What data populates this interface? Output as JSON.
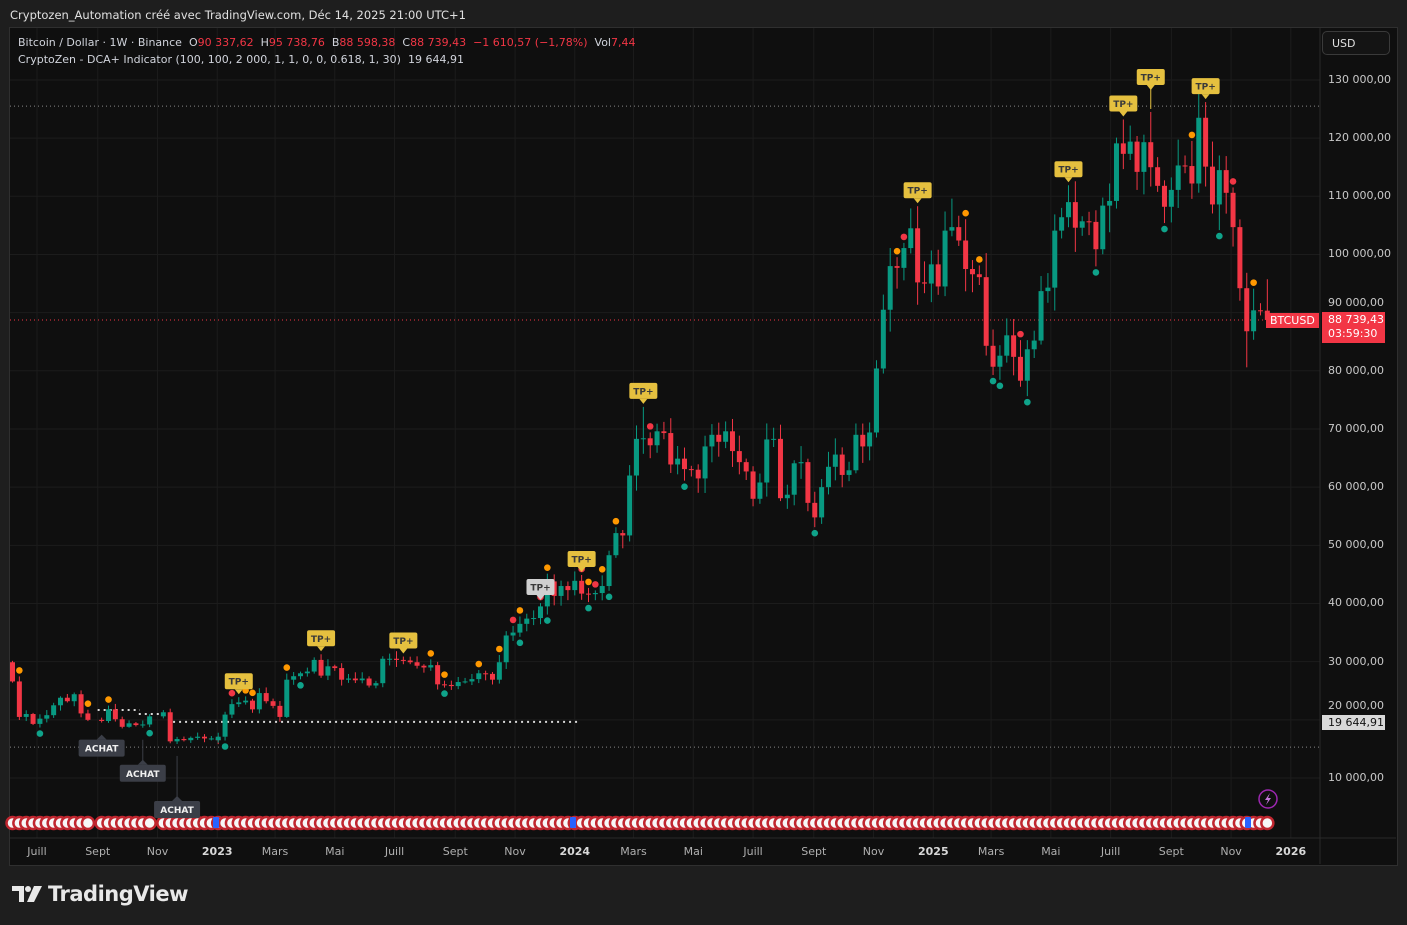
{
  "caption": "Cryptozen_Automation créé avec TradingView.com, Déc 14, 2025 21:00 UTC+1",
  "legend": {
    "symbol": "Bitcoin / Dollar · 1W · Binance",
    "o_label": "O",
    "o": "90 337,62",
    "h_label": "H",
    "h": "95 738,76",
    "l_label": "B",
    "l": "88 598,38",
    "c_label": "C",
    "c": "88 739,43",
    "change": "−1 610,57 (−1,78%)",
    "vol_label": "Vol",
    "vol": "7,44",
    "indicator": "CryptoZen - DCA+ Indicator (100, 100, 2 000, 1, 1, 0, 0, 0.618, 1, 30)",
    "indicator_value": "19 644,91"
  },
  "currency_button": "USD",
  "symbol_tag": "BTCUSD",
  "price_tag": {
    "price": "88 739,43",
    "countdown": "03:59:30"
  },
  "indicator_tag": "19 644,91",
  "brand": "TradingView",
  "colors": {
    "up": "#089981",
    "down": "#f23645",
    "tp": "#e5c03f",
    "achat": "#3b3e47",
    "orange": "#ff9800",
    "red": "#f23645",
    "teal": "#0fa38a"
  },
  "chart_data": {
    "type": "candlestick",
    "interval": "1W",
    "units": "USD (thousands in weekly_close)",
    "first_open": 29.9,
    "weekly_close": {
      "2022-06": [
        26.6,
        20.5,
        21.0,
        19.3
      ],
      "2022-07": [
        20.2,
        20.8,
        22.5,
        23.8
      ],
      "2022-08": [
        23.2,
        24.4,
        21.1,
        20.0
      ],
      "2022-09": [
        19.8,
        21.8,
        20.1,
        18.8,
        19.3
      ],
      "2022-10": [
        19.4,
        19.1,
        19.2,
        20.6
      ],
      "2022-11": [
        21.3,
        16.3,
        16.7,
        16.5
      ],
      "2022-12": [
        16.9,
        17.1,
        16.8,
        16.8,
        16.5
      ],
      "2023-01": [
        17.1,
        20.9,
        22.7,
        23.0,
        23.3
      ],
      "2023-02": [
        21.8,
        24.6,
        23.2,
        22.4
      ],
      "2023-03": [
        20.5,
        26.9,
        27.5,
        28.0
      ],
      "2023-04": [
        28.3,
        30.3,
        27.6,
        29.2
      ],
      "2023-05": [
        28.9,
        26.9,
        27.1,
        26.8,
        27.1
      ],
      "2023-06": [
        25.9,
        26.3,
        30.5,
        30.5
      ],
      "2023-07": [
        30.3,
        30.2,
        29.9,
        29.3,
        29.0
      ],
      "2023-08": [
        29.4,
        26.1,
        26.0,
        25.8
      ],
      "2023-09": [
        26.5,
        26.6,
        27.0,
        28.0
      ],
      "2023-10": [
        27.9,
        26.9,
        29.9,
        34.5,
        35.0
      ],
      "2023-11": [
        36.5,
        37.4,
        37.5,
        39.5
      ],
      "2023-12": [
        43.8,
        41.3,
        43.0,
        42.3
      ],
      "2024-01": [
        43.9,
        41.7,
        41.6,
        41.8,
        43.0
      ],
      "2024-02": [
        48.3,
        52.1,
        51.7,
        62.0
      ],
      "2024-03": [
        68.3,
        68.4,
        67.2,
        69.6
      ],
      "2024-04": [
        69.3,
        63.9,
        64.9,
        63.1,
        63.0
      ],
      "2024-05": [
        61.5,
        67.0,
        69.0,
        67.8
      ],
      "2024-06": [
        69.6,
        66.2,
        64.3,
        62.7
      ],
      "2024-07": [
        58.0,
        60.8,
        68.2,
        68.3,
        58.1
      ],
      "2024-08": [
        58.7,
        64.1,
        64.3,
        57.3
      ],
      "2024-09": [
        54.8,
        60.0,
        63.5,
        65.6,
        62.1
      ],
      "2024-10": [
        62.9,
        69.0,
        67.0,
        69.4
      ],
      "2024-11": [
        80.4,
        90.5,
        98.0,
        97.7
      ],
      "2024-12": [
        101.1,
        104.5,
        95.2,
        95.0,
        98.3
      ],
      "2025-01": [
        94.5,
        104.1,
        104.7,
        102.4
      ],
      "2025-02": [
        97.5,
        96.6,
        96.1,
        84.3
      ],
      "2025-03": [
        80.7,
        82.6,
        86.1,
        82.4,
        78.3
      ],
      "2025-04": [
        83.7,
        85.2,
        93.7,
        94.3
      ],
      "2025-05": [
        104.1,
        106.4,
        109.0,
        104.6
      ],
      "2025-06": [
        105.7,
        105.6,
        100.9,
        108.4,
        109.2
      ],
      "2025-07": [
        119.1,
        117.3,
        119.4,
        114.2
      ],
      "2025-08": [
        119.3,
        115.0,
        111.8,
        108.2
      ],
      "2025-09": [
        111.1,
        115.3,
        115.2,
        112.2,
        123.5
      ],
      "2025-10": [
        115.1,
        108.6,
        114.5,
        110.6
      ],
      "2025-11": [
        104.7,
        94.2,
        86.8,
        90.4
      ],
      "2025-12": [
        90.34,
        88.74
      ]
    },
    "wick_extremes": {
      "2024-03-11": {
        "high": 73.8
      },
      "2024-12-16": {
        "high": 108.3
      },
      "2025-01-20": {
        "high": 109.6
      },
      "2025-05-19": {
        "high": 111.9
      },
      "2025-07-14": {
        "high": 123.2
      },
      "2025-08-11": {
        "high": 124.5
      },
      "2025-10-06": {
        "high": 126.2
      },
      "2025-11-17": {
        "low": 80.6
      },
      "2025-12-08": {
        "high": 95.74,
        "low": 88.6
      }
    },
    "y_axis": {
      "min": 0,
      "max": 140000,
      "ticks": [
        "130 000,00",
        "120 000,00",
        "110 000,00",
        "100 000,00",
        "90 000,00",
        "80 000,00",
        "70 000,00",
        "60 000,00",
        "50 000,00",
        "40 000,00",
        "30 000,00",
        "20 000,00",
        "10 000,00"
      ],
      "tick_values": [
        130000,
        120000,
        110000,
        100000,
        90000,
        80000,
        70000,
        60000,
        50000,
        40000,
        30000,
        20000,
        10000
      ]
    },
    "x_axis": [
      {
        "date": "2022-07-01",
        "label": "Juill"
      },
      {
        "date": "2022-09-01",
        "label": "Sept"
      },
      {
        "date": "2022-11-01",
        "label": "Nov"
      },
      {
        "date": "2023-01-01",
        "label": "2023",
        "year": true
      },
      {
        "date": "2023-03-01",
        "label": "Mars"
      },
      {
        "date": "2023-05-01",
        "label": "Mai"
      },
      {
        "date": "2023-07-01",
        "label": "Juill"
      },
      {
        "date": "2023-09-01",
        "label": "Sept"
      },
      {
        "date": "2023-11-01",
        "label": "Nov"
      },
      {
        "date": "2024-01-01",
        "label": "2024",
        "year": true
      },
      {
        "date": "2024-03-01",
        "label": "Mars"
      },
      {
        "date": "2024-05-01",
        "label": "Mai"
      },
      {
        "date": "2024-07-01",
        "label": "Juill"
      },
      {
        "date": "2024-09-01",
        "label": "Sept"
      },
      {
        "date": "2024-11-01",
        "label": "Nov"
      },
      {
        "date": "2025-01-01",
        "label": "2025",
        "year": true
      },
      {
        "date": "2025-03-01",
        "label": "Mars"
      },
      {
        "date": "2025-05-01",
        "label": "Mai"
      },
      {
        "date": "2025-07-01",
        "label": "Juill"
      },
      {
        "date": "2025-09-01",
        "label": "Sept"
      },
      {
        "date": "2025-11-01",
        "label": "Nov"
      },
      {
        "date": "2026-01-01",
        "label": "2026",
        "year": true
      }
    ],
    "grid": true,
    "reference_lines": [
      {
        "price": 125500,
        "style": "dotted",
        "color": "#888888"
      },
      {
        "price": 15300,
        "style": "dotted",
        "color": "#888888"
      },
      {
        "price": 88739.43,
        "style": "dotted",
        "color": "#f23645"
      }
    ],
    "dca_levels": [
      {
        "price": 21700,
        "from": "2022-09-05",
        "to": "2022-10-10"
      },
      {
        "price": 21000,
        "from": "2022-10-17",
        "to": "2022-11-14"
      },
      {
        "price": 19644.91,
        "from": "2022-11-21",
        "to": "2024-01-01"
      }
    ],
    "signals": {
      "tp_label": "TP+",
      "achat_label": "ACHAT",
      "tp": [
        "2023-01-23",
        "2023-04-17",
        "2023-07-10",
        "2024-01-08",
        "2024-03-11",
        "2024-12-16",
        "2025-05-19",
        "2025-07-14",
        "2025-08-11",
        "2025-10-06"
      ],
      "tp_faded": [
        "2023-11-27"
      ],
      "achat": [
        "2022-09-05",
        "2022-10-17",
        "2022-11-21"
      ],
      "dots": [
        {
          "date": "2022-06-13",
          "color": "orange",
          "pos": "above"
        },
        {
          "date": "2022-08-22",
          "color": "orange",
          "pos": "above"
        },
        {
          "date": "2022-09-12",
          "color": "orange",
          "pos": "above"
        },
        {
          "date": "2023-01-16",
          "color": "red",
          "pos": "above"
        },
        {
          "date": "2023-01-30",
          "color": "orange",
          "pos": "above"
        },
        {
          "date": "2023-02-06",
          "color": "orange",
          "pos": "above"
        },
        {
          "date": "2023-03-13",
          "color": "orange",
          "pos": "above"
        },
        {
          "date": "2023-08-07",
          "color": "orange",
          "pos": "above"
        },
        {
          "date": "2023-08-21",
          "color": "orange",
          "pos": "above"
        },
        {
          "date": "2023-09-25",
          "color": "orange",
          "pos": "above"
        },
        {
          "date": "2023-10-16",
          "color": "orange",
          "pos": "above"
        },
        {
          "date": "2023-10-30",
          "color": "red",
          "pos": "above"
        },
        {
          "date": "2023-11-06",
          "color": "orange",
          "pos": "above"
        },
        {
          "date": "2023-11-27",
          "color": "red",
          "pos": "above"
        },
        {
          "date": "2023-12-04",
          "color": "orange",
          "pos": "above"
        },
        {
          "date": "2024-01-08",
          "color": "red",
          "pos": "above"
        },
        {
          "date": "2024-01-15",
          "color": "orange",
          "pos": "above"
        },
        {
          "date": "2024-01-22",
          "color": "red",
          "pos": "above"
        },
        {
          "date": "2024-01-29",
          "color": "orange",
          "pos": "above"
        },
        {
          "date": "2024-02-12",
          "color": "orange",
          "pos": "above"
        },
        {
          "date": "2024-03-18",
          "color": "red",
          "pos": "above"
        },
        {
          "date": "2024-11-25",
          "color": "orange",
          "pos": "above"
        },
        {
          "date": "2024-12-02",
          "color": "red",
          "pos": "above"
        },
        {
          "date": "2025-02-03",
          "color": "orange",
          "pos": "above"
        },
        {
          "date": "2025-02-17",
          "color": "orange",
          "pos": "above"
        },
        {
          "date": "2025-03-31",
          "color": "red",
          "pos": "above"
        },
        {
          "date": "2025-09-22",
          "color": "orange",
          "pos": "above"
        },
        {
          "date": "2025-11-03",
          "color": "red",
          "pos": "above"
        },
        {
          "date": "2025-11-24",
          "color": "orange",
          "pos": "above"
        },
        {
          "date": "2022-07-04",
          "color": "teal",
          "pos": "below"
        },
        {
          "date": "2022-10-24",
          "color": "teal",
          "pos": "below"
        },
        {
          "date": "2023-01-09",
          "color": "teal",
          "pos": "below"
        },
        {
          "date": "2023-03-27",
          "color": "teal",
          "pos": "below"
        },
        {
          "date": "2023-08-21",
          "color": "teal",
          "pos": "below"
        },
        {
          "date": "2023-11-06",
          "color": "teal",
          "pos": "below"
        },
        {
          "date": "2023-12-04",
          "color": "teal",
          "pos": "below"
        },
        {
          "date": "2024-01-15",
          "color": "teal",
          "pos": "below"
        },
        {
          "date": "2024-02-05",
          "color": "teal",
          "pos": "below"
        },
        {
          "date": "2024-04-22",
          "color": "teal",
          "pos": "below"
        },
        {
          "date": "2024-09-02",
          "color": "teal",
          "pos": "below"
        },
        {
          "date": "2025-03-03",
          "color": "teal",
          "pos": "below"
        },
        {
          "date": "2025-03-10",
          "color": "teal",
          "pos": "below"
        },
        {
          "date": "2025-04-07",
          "color": "teal",
          "pos": "below"
        },
        {
          "date": "2025-06-16",
          "color": "teal",
          "pos": "below"
        },
        {
          "date": "2025-08-25",
          "color": "teal",
          "pos": "below"
        },
        {
          "date": "2025-10-20",
          "color": "teal",
          "pos": "below"
        }
      ]
    }
  }
}
